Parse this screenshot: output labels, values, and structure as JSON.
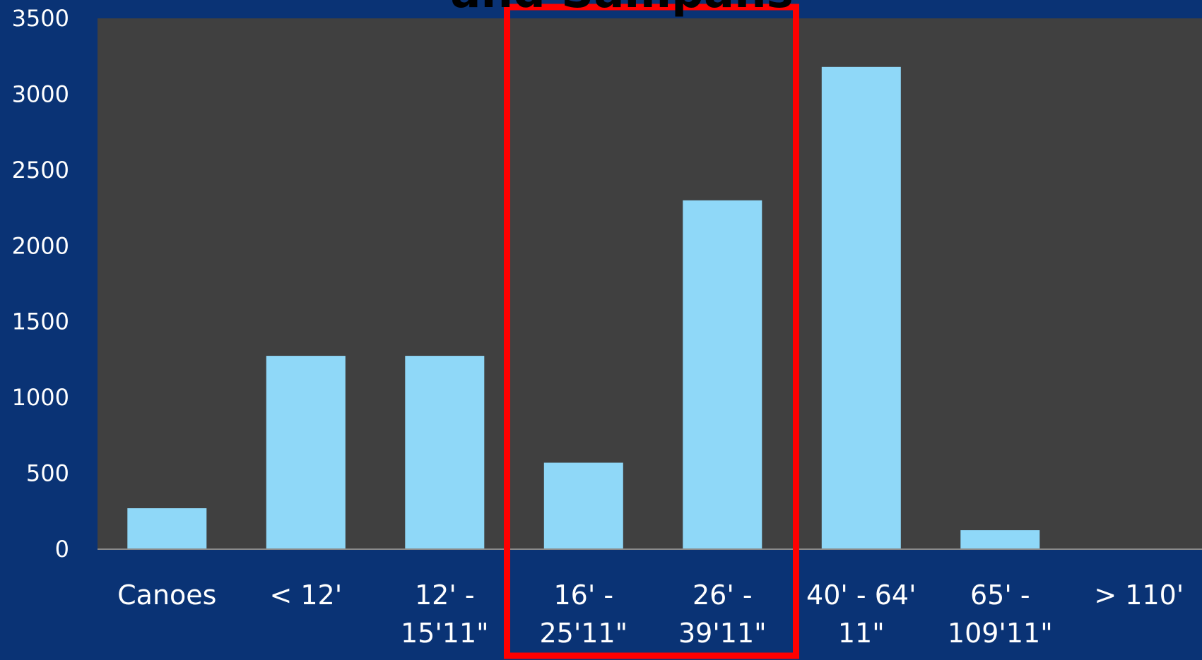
{
  "chart_data": {
    "type": "bar",
    "title": "and Sampans",
    "categories": [
      [
        "Canoes"
      ],
      [
        "< 12'"
      ],
      [
        "12' -",
        "15'11\""
      ],
      [
        "16' -",
        "25'11\""
      ],
      [
        "26' -",
        "39'11\""
      ],
      [
        "40' - 64'",
        "11\""
      ],
      [
        "65' -",
        "109'11\""
      ],
      [
        "> 110'"
      ]
    ],
    "values": [
      270,
      1275,
      1275,
      570,
      2300,
      3180,
      125,
      0
    ],
    "ylim": [
      0,
      3500
    ],
    "yticks": [
      0,
      500,
      1000,
      1500,
      2000,
      2500,
      3000,
      3500
    ],
    "grid": false,
    "highlight": {
      "from_category": 3,
      "to_category": 4,
      "color": "#ff0000"
    },
    "colors": {
      "background": "#0a3375",
      "plot_area": "#404040",
      "bar": "#8fd8f8",
      "text": "#ffffff"
    }
  }
}
